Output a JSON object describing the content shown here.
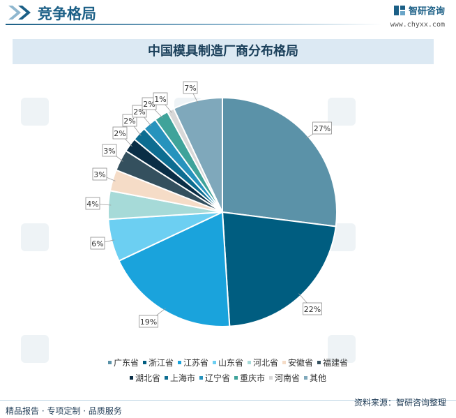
{
  "header": {
    "section_title": "竞争格局",
    "brand_name": "智研咨询",
    "brand_url": "www.chyxx.com"
  },
  "chart_data": {
    "type": "pie",
    "title": "中国模具制造厂商分布格局",
    "categories": [
      "广东省",
      "浙江省",
      "江苏省",
      "山东省",
      "河北省",
      "安徽省",
      "福建省",
      "湖北省",
      "上海市",
      "辽宁省",
      "重庆市",
      "河南省",
      "其他"
    ],
    "values": [
      27,
      22,
      19,
      6,
      4,
      3,
      3,
      2,
      2,
      2,
      2,
      1,
      7
    ],
    "labels": [
      "27%",
      "22%",
      "19%",
      "6%",
      "4%",
      "3%",
      "3%",
      "2%",
      "2%",
      "2%",
      "2%",
      "1%",
      "7%"
    ],
    "colors": [
      "#5b92a8",
      "#005d80",
      "#1aa3dc",
      "#6ccff2",
      "#a6dad8",
      "#f5dcc7",
      "#34505e",
      "#0a2e46",
      "#0d6d91",
      "#2793bd",
      "#3fa39a",
      "#d8d8d8",
      "#7fa8bb"
    ],
    "legend_position": "bottom"
  },
  "footer": {
    "left_text": "精品报告 · 专项定制 · 品质服务",
    "source_text": "资料来源：智研咨询整理"
  }
}
